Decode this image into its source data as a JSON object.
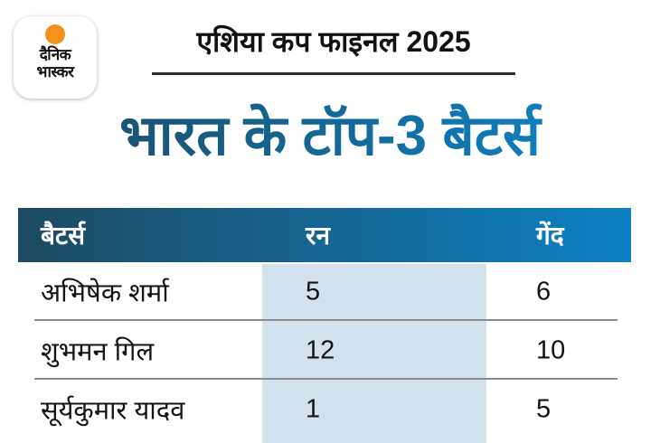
{
  "brand": {
    "logo_line1": "दैनिक",
    "logo_line2": "भास्कर"
  },
  "header": {
    "event_title": "एशिया कप फाइनल 2025"
  },
  "title": "भारत के टॉप-3 बैटर्स",
  "table": {
    "headers": [
      "बैटर्स",
      "रन",
      "गेंद"
    ],
    "rows": [
      {
        "batter": "अभिषेक शर्मा",
        "runs": "5",
        "balls": "6"
      },
      {
        "batter": "शुभमन गिल",
        "runs": "12",
        "balls": "10"
      },
      {
        "batter": "सूर्यकुमार यादव",
        "runs": "1",
        "balls": "5"
      }
    ]
  },
  "chart_data": {
    "type": "table",
    "title": "भारत के टॉप-3 बैटर्स",
    "subtitle": "एशिया कप फाइनल 2025",
    "columns": [
      "बैटर्स",
      "रन",
      "गेंद"
    ],
    "rows": [
      [
        "अभिषेक शर्मा",
        5,
        6
      ],
      [
        "शुभमन गिल",
        12,
        10
      ],
      [
        "सूर्यकुमार यादव",
        1,
        5
      ]
    ],
    "highlighted_column": "रन"
  },
  "colors": {
    "gradient_dark_blue": "#1d4a61",
    "gradient_bright_blue": "#0d81c4",
    "runs_band_blue": "#d3e3ee",
    "logo_orange": "#f39218",
    "divider_gray": "#8a8a8a"
  }
}
